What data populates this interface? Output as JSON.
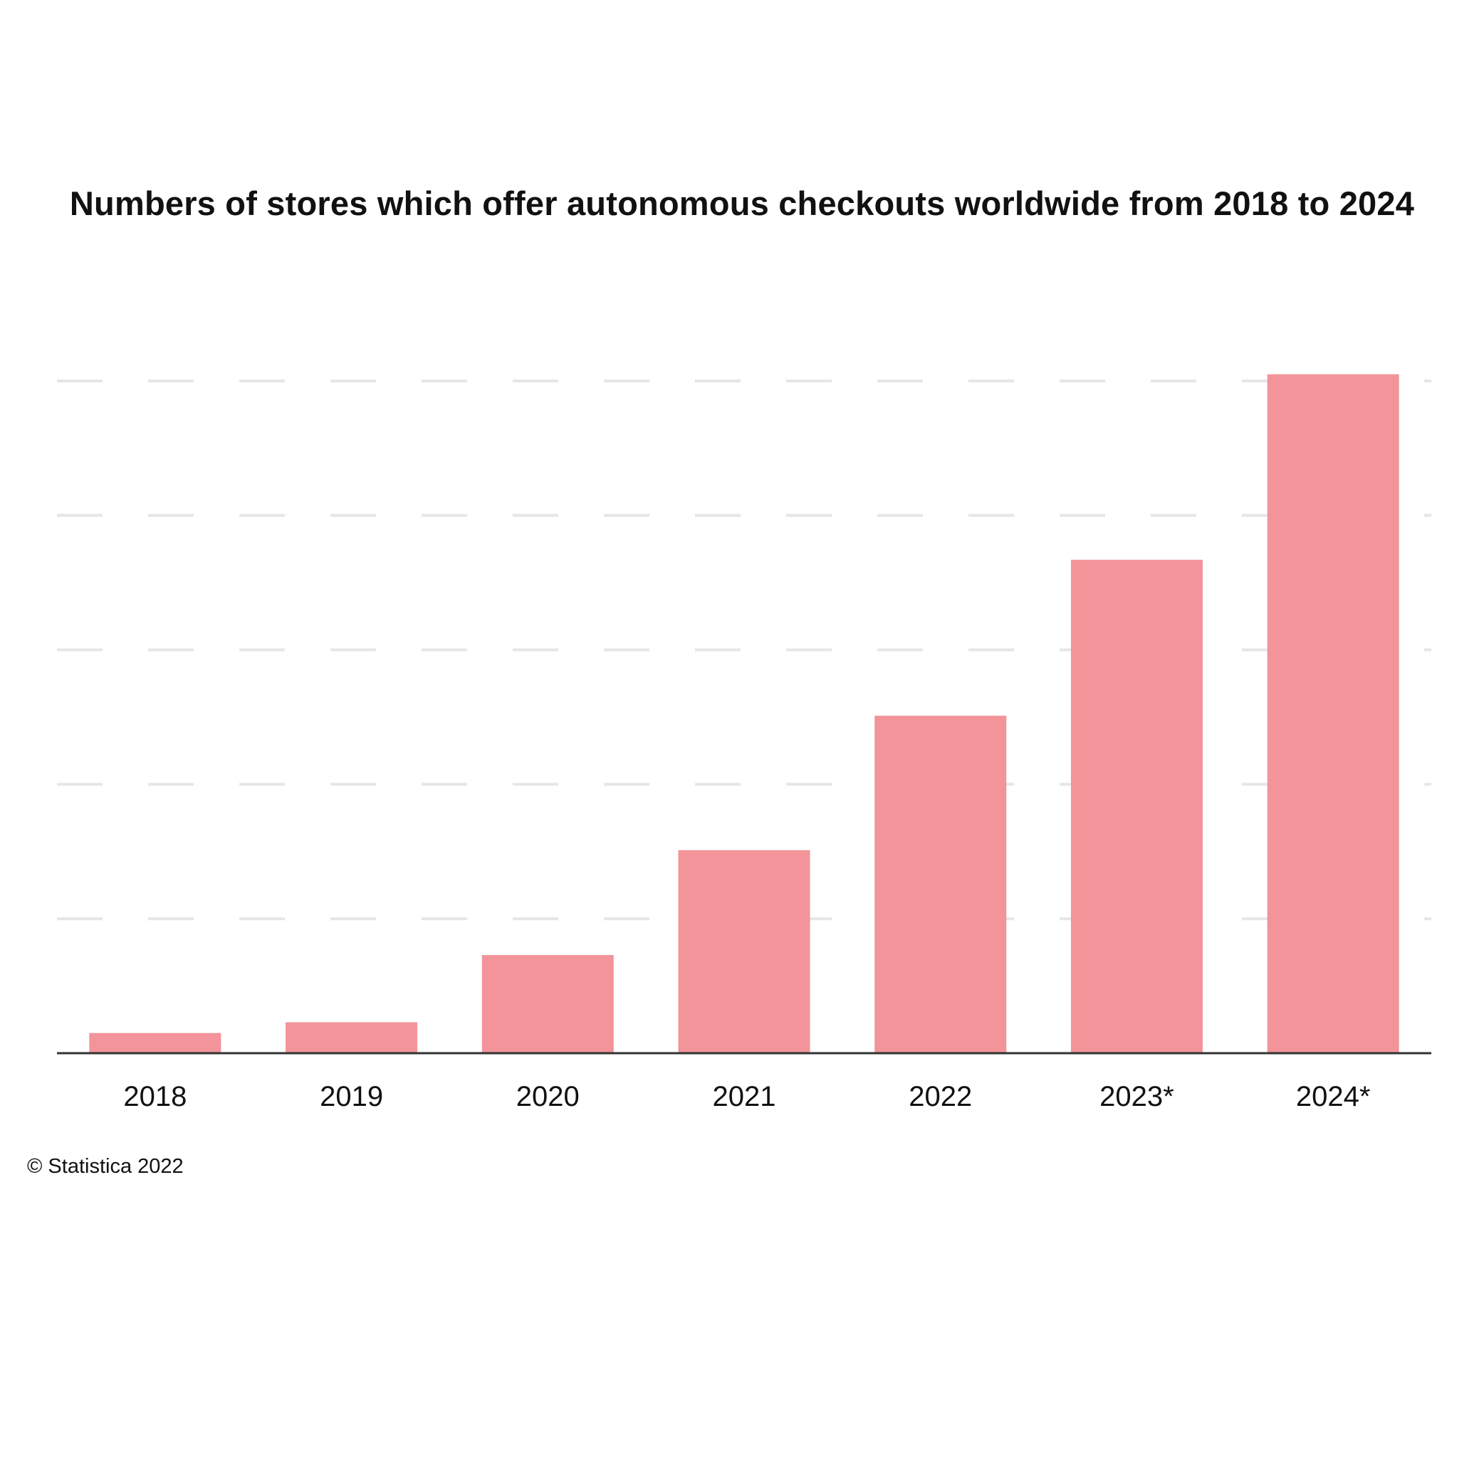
{
  "chart_data": {
    "type": "bar",
    "title": "Numbers of stores which offer autonomous checkouts worldwide from 2018 to 2024",
    "categories": [
      "2018",
      "2019",
      "2020",
      "2021",
      "2022",
      "2023*",
      "2024*"
    ],
    "values": [
      150,
      230,
      730,
      1510,
      2510,
      3670,
      5050
    ],
    "xlabel": "",
    "ylabel": "",
    "ylim": [
      0,
      5000
    ],
    "y_gridlines": [
      1000,
      2000,
      3000,
      4000,
      5000
    ],
    "grid": true,
    "gridline_style": "dashed",
    "legend": "none",
    "bar_color": "#f29499",
    "grid_color": "#e6e6e6",
    "axis_color": "#333333"
  },
  "footer": {
    "copyright": "© Statistica 2022"
  }
}
